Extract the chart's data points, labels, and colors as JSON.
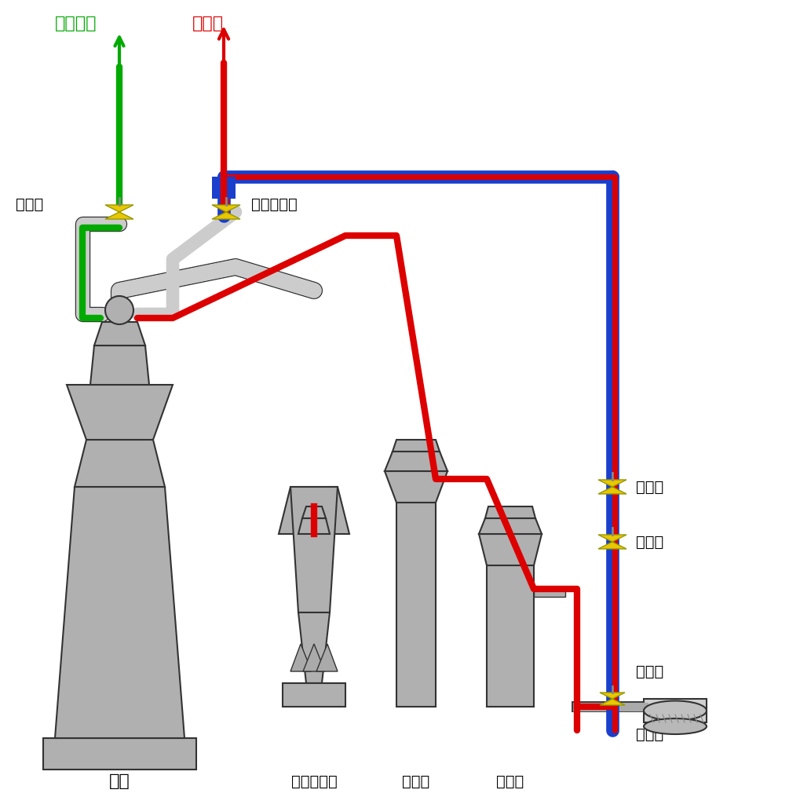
{
  "bg_color": "#ffffff",
  "label_traditional": "传统方式",
  "label_improved": "改进后",
  "label_vent_valve": "排气阀",
  "label_switchable": "可切换模式",
  "label_auto_valve": "自动阀",
  "label_manual_valve": "手动阀",
  "label_gas_tank": "煤气柜",
  "label_cutoff_valve": "切断阀",
  "label_blast_furnace": "高炉",
  "label_cyclone": "旋风分离器",
  "label_washer": "洗涤器",
  "label_demister": "除雾器",
  "color_traditional": "#00aa00",
  "color_improved": "#dd0000",
  "color_blue_pipe": "#1a3fcc",
  "color_gray": "#b0b0b0",
  "color_valve": "#e8c800",
  "color_dark": "#333333"
}
